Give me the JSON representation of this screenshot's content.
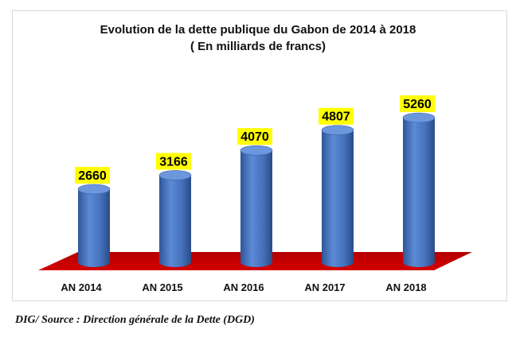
{
  "chart_data": {
    "type": "bar",
    "title": "Evolution de la dette publique du Gabon de 2014 à 2018",
    "subtitle": "( En milliards de francs)",
    "categories": [
      "AN 2014",
      "AN 2015",
      "AN 2016",
      "AN 2017",
      "AN 2018"
    ],
    "values": [
      2660,
      3166,
      4070,
      4807,
      5260
    ],
    "data_labels": [
      "2660",
      "3166",
      "4070",
      "4807",
      "5260"
    ],
    "ylim": [
      0,
      5600
    ],
    "grid": false,
    "legend": "none",
    "colors": {
      "bar": "#4a78c2",
      "floor": "#cc0000",
      "label_bg": "#ffff00"
    }
  },
  "source": "DIG/ Source : Direction générale de la Dette (DGD)"
}
